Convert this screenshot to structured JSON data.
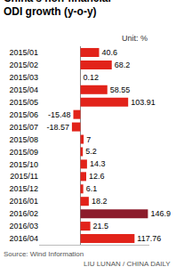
{
  "chart_data": {
    "type": "bar",
    "title": "China's non-financial ODI growth (y-o-y)",
    "orientation": "horizontal",
    "categories": [
      "2015/01",
      "2015/02",
      "2015/03",
      "2015/04",
      "2015/05",
      "2015/06",
      "2015/07",
      "2015/08",
      "2015/09",
      "2015/10",
      "2015/11",
      "2015/12",
      "2016/01",
      "2016/02",
      "2016/03",
      "2016/04"
    ],
    "values": [
      40.6,
      68.2,
      0.12,
      58.55,
      103.91,
      -15.48,
      -18.57,
      7,
      5.2,
      14.3,
      12.6,
      6.1,
      18.2,
      146.9,
      21.5,
      117.76
    ],
    "colors": [
      "#e2231a",
      "#e2231a",
      "#e2231a",
      "#e2231a",
      "#e2231a",
      "#e2231a",
      "#e2231a",
      "#e2231a",
      "#e2231a",
      "#e2231a",
      "#e2231a",
      "#e2231a",
      "#e2231a",
      "#8c1c2c",
      "#e2231a",
      "#e2231a"
    ],
    "xlim": [
      -90,
      150
    ],
    "data_labels": true,
    "tick_labels": "y",
    "grid": false,
    "annotations": [
      "Unit: %",
      "Source: Wind Information",
      "LIU LUNAN / CHINA DAILY"
    ]
  }
}
